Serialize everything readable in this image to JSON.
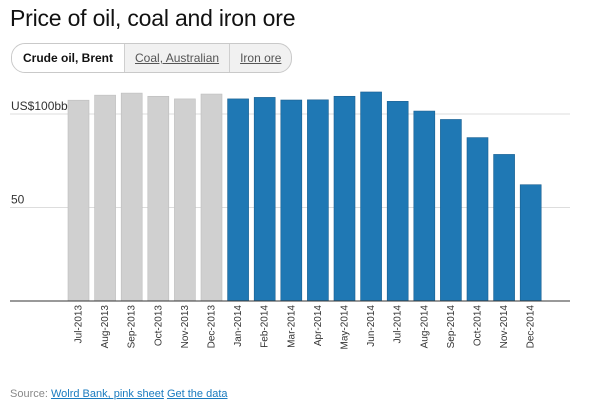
{
  "title": "Price of oil, coal and iron ore",
  "tabs": [
    {
      "label": "Crude oil, Brent",
      "active": true
    },
    {
      "label": "Coal, Australian",
      "active": false
    },
    {
      "label": "Iron ore",
      "active": false
    }
  ],
  "source": {
    "prefix": "Source: ",
    "link1": "Wolrd Bank, pink sheet",
    "link2": "Get the data"
  },
  "colors": {
    "past": "#d0d0d0",
    "current": "#1f78b4",
    "grid": "#dddddd",
    "axis": "#333333"
  },
  "chart_data": {
    "type": "bar",
    "categories": [
      "Jul-2013",
      "Aug-2013",
      "Sep-2013",
      "Oct-2013",
      "Nov-2013",
      "Dec-2013",
      "Jan-2014",
      "Feb-2014",
      "Mar-2014",
      "Apr-2014",
      "May-2014",
      "Jun-2014",
      "Jul-2014",
      "Aug-2014",
      "Sep-2014",
      "Oct-2014",
      "Nov-2014",
      "Dec-2014"
    ],
    "values": [
      107.4,
      110.1,
      111.2,
      109.5,
      108.1,
      110.7,
      108.1,
      108.9,
      107.5,
      107.6,
      109.5,
      111.8,
      106.8,
      101.6,
      97.1,
      87.4,
      78.4,
      62.2
    ],
    "highlight_from_index": 6,
    "y_unit_label": "US$100bbl",
    "y_ticks": [
      {
        "value": 100,
        "label": "US$100bbl"
      },
      {
        "value": 50,
        "label": "50"
      }
    ],
    "ylim": [
      0,
      115
    ],
    "grid": true,
    "xlabel": "",
    "ylabel": ""
  }
}
